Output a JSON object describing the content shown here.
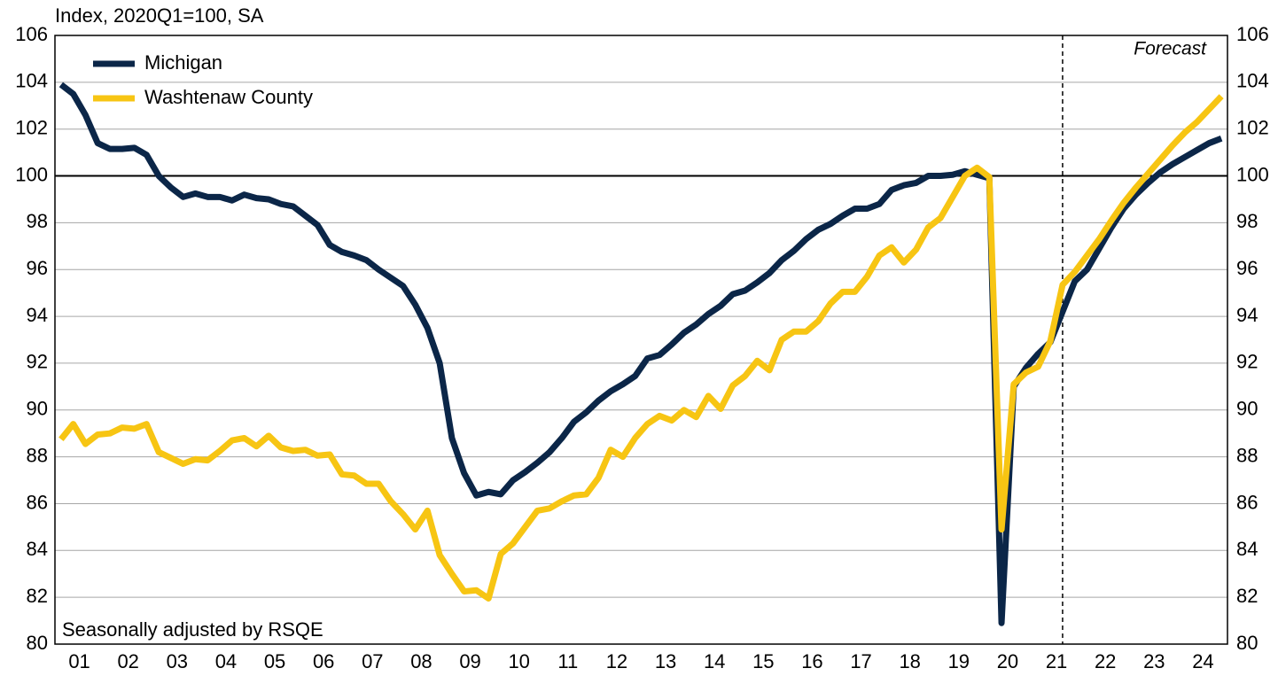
{
  "chart_data": {
    "type": "line",
    "title": "Index, 2020Q1=100, SA",
    "annotations": {
      "forecast": "Forecast",
      "note": "Seasonally adjusted by RSQE"
    },
    "forecast_x": 2021.625,
    "reference_line": 100,
    "x": [
      2001.125,
      2001.375,
      2001.625,
      2001.875,
      2002.125,
      2002.375,
      2002.625,
      2002.875,
      2003.125,
      2003.375,
      2003.625,
      2003.875,
      2004.125,
      2004.375,
      2004.625,
      2004.875,
      2005.125,
      2005.375,
      2005.625,
      2005.875,
      2006.125,
      2006.375,
      2006.625,
      2006.875,
      2007.125,
      2007.375,
      2007.625,
      2007.875,
      2008.125,
      2008.375,
      2008.625,
      2008.875,
      2009.125,
      2009.375,
      2009.625,
      2009.875,
      2010.125,
      2010.375,
      2010.625,
      2010.875,
      2011.125,
      2011.375,
      2011.625,
      2011.875,
      2012.125,
      2012.375,
      2012.625,
      2012.875,
      2013.125,
      2013.375,
      2013.625,
      2013.875,
      2014.125,
      2014.375,
      2014.625,
      2014.875,
      2015.125,
      2015.375,
      2015.625,
      2015.875,
      2016.125,
      2016.375,
      2016.625,
      2016.875,
      2017.125,
      2017.375,
      2017.625,
      2017.875,
      2018.125,
      2018.375,
      2018.625,
      2018.875,
      2019.125,
      2019.375,
      2019.625,
      2019.875,
      2020.125,
      2020.375,
      2020.625,
      2020.875,
      2021.125,
      2021.375,
      2021.625,
      2021.875,
      2022.125,
      2022.375,
      2022.625,
      2022.875,
      2023.125,
      2023.375,
      2023.625,
      2023.875,
      2024.125,
      2024.375,
      2024.625,
      2024.875
    ],
    "series": [
      {
        "name": "Michigan",
        "color": "#0b2648",
        "values": [
          103.9,
          103.5,
          102.6,
          101.4,
          101.15,
          101.15,
          101.2,
          100.9,
          100.0,
          99.5,
          99.1,
          99.25,
          99.1,
          99.1,
          98.95,
          99.2,
          99.05,
          99.0,
          98.8,
          98.7,
          98.3,
          97.9,
          97.05,
          96.75,
          96.6,
          96.4,
          96.0,
          95.65,
          95.3,
          94.5,
          93.5,
          92.0,
          88.8,
          87.3,
          86.35,
          86.5,
          86.4,
          87.0,
          87.35,
          87.75,
          88.2,
          88.8,
          89.5,
          89.9,
          90.4,
          90.8,
          91.1,
          91.45,
          92.2,
          92.35,
          92.8,
          93.3,
          93.65,
          94.1,
          94.45,
          94.95,
          95.1,
          95.45,
          95.85,
          96.4,
          96.8,
          97.3,
          97.7,
          97.95,
          98.3,
          98.6,
          98.6,
          98.8,
          99.4,
          99.6,
          99.7,
          100.0,
          100.0,
          100.05,
          100.2,
          100.05,
          99.9,
          80.9,
          91.0,
          91.8,
          92.4,
          92.9,
          94.2,
          95.5,
          96.0,
          96.9,
          97.8,
          98.6,
          99.2,
          99.7,
          100.15,
          100.5,
          100.8,
          101.1,
          101.4,
          101.6
        ]
      },
      {
        "name": "Washtenaw County",
        "color": "#f7c513",
        "values": [
          88.75,
          89.4,
          88.55,
          88.95,
          89.0,
          89.25,
          89.2,
          89.4,
          88.2,
          87.95,
          87.7,
          87.9,
          87.85,
          88.25,
          88.7,
          88.8,
          88.45,
          88.9,
          88.4,
          88.25,
          88.3,
          88.05,
          88.1,
          87.25,
          87.2,
          86.85,
          86.85,
          86.1,
          85.55,
          84.9,
          85.7,
          83.8,
          83.0,
          82.25,
          82.3,
          81.95,
          83.85,
          84.3,
          85.0,
          85.7,
          85.8,
          86.1,
          86.35,
          86.4,
          87.1,
          88.3,
          88.0,
          88.8,
          89.4,
          89.75,
          89.55,
          90.0,
          89.7,
          90.6,
          90.05,
          91.05,
          91.45,
          92.1,
          91.7,
          93.0,
          93.35,
          93.35,
          93.8,
          94.55,
          95.05,
          95.05,
          95.7,
          96.6,
          96.95,
          96.3,
          96.85,
          97.8,
          98.2,
          99.1,
          100.0,
          100.35,
          99.95,
          84.9,
          91.1,
          91.6,
          91.85,
          92.95,
          95.35,
          95.9,
          96.6,
          97.3,
          98.1,
          98.85,
          99.5,
          100.1,
          100.7,
          101.3,
          101.85,
          102.3,
          102.85,
          103.4
        ]
      }
    ],
    "xlim": [
      2001,
      2025
    ],
    "xticks": [
      {
        "value": 2001.5,
        "label": "01"
      },
      {
        "value": 2002.5,
        "label": "02"
      },
      {
        "value": 2003.5,
        "label": "03"
      },
      {
        "value": 2004.5,
        "label": "04"
      },
      {
        "value": 2005.5,
        "label": "05"
      },
      {
        "value": 2006.5,
        "label": "06"
      },
      {
        "value": 2007.5,
        "label": "07"
      },
      {
        "value": 2008.5,
        "label": "08"
      },
      {
        "value": 2009.5,
        "label": "09"
      },
      {
        "value": 2010.5,
        "label": "10"
      },
      {
        "value": 2011.5,
        "label": "11"
      },
      {
        "value": 2012.5,
        "label": "12"
      },
      {
        "value": 2013.5,
        "label": "13"
      },
      {
        "value": 2014.5,
        "label": "14"
      },
      {
        "value": 2015.5,
        "label": "15"
      },
      {
        "value": 2016.5,
        "label": "16"
      },
      {
        "value": 2017.5,
        "label": "17"
      },
      {
        "value": 2018.5,
        "label": "18"
      },
      {
        "value": 2019.5,
        "label": "19"
      },
      {
        "value": 2020.5,
        "label": "20"
      },
      {
        "value": 2021.5,
        "label": "21"
      },
      {
        "value": 2022.5,
        "label": "22"
      },
      {
        "value": 2023.5,
        "label": "23"
      },
      {
        "value": 2024.5,
        "label": "24"
      }
    ],
    "ylim": [
      80,
      106
    ],
    "yticks": [
      80,
      82,
      84,
      86,
      88,
      90,
      92,
      94,
      96,
      98,
      100,
      102,
      104,
      106
    ],
    "y2lim": [
      80,
      106
    ],
    "y2ticks": [
      80,
      82,
      84,
      86,
      88,
      90,
      92,
      94,
      96,
      98,
      100,
      102,
      104,
      106
    ],
    "grid": true,
    "legend": "upper left"
  }
}
